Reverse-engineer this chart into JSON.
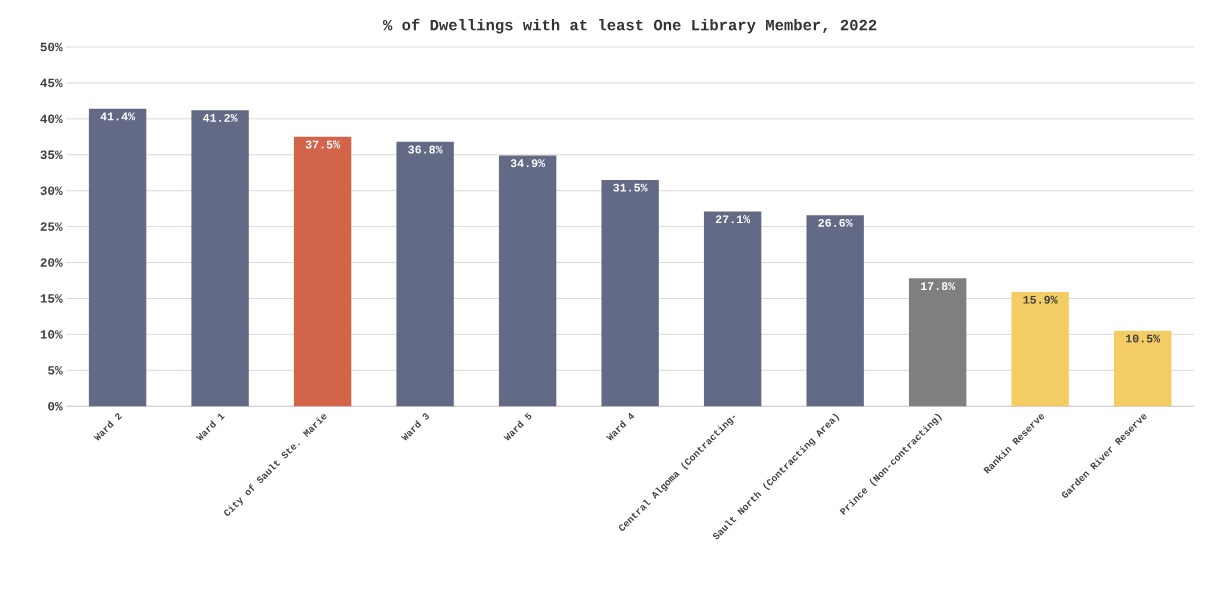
{
  "chart_data": {
    "type": "bar",
    "title": "% of Dwellings with at least One Library Member, 2022",
    "categories": [
      "Ward 2",
      "Ward 1",
      "City of Sault Ste. Marie",
      "Ward 3",
      "Ward 5",
      "Ward 4",
      "Central Algoma (Contracting-",
      "Sault North (Contracting Area)",
      "Prince (Non-contracting)",
      "Rankin Reserve",
      "Garden River Reserve"
    ],
    "values": [
      41.4,
      41.2,
      37.5,
      36.8,
      34.9,
      31.5,
      27.1,
      26.6,
      17.8,
      15.9,
      10.5
    ],
    "value_labels": [
      "41.4%",
      "41.2%",
      "37.5%",
      "36.8%",
      "34.9%",
      "31.5%",
      "27.1%",
      "26.6%",
      "17.8%",
      "15.9%",
      "10.5%"
    ],
    "colors": [
      "#636a86",
      "#636a86",
      "#d2644a",
      "#636a86",
      "#636a86",
      "#636a86",
      "#636a86",
      "#636a86",
      "#7f7f7f",
      "#f3cd63",
      "#f3cd63"
    ],
    "ylim": [
      0,
      50
    ],
    "yticks": [
      {
        "value": 0,
        "label": "0%"
      },
      {
        "value": 5,
        "label": "5%"
      },
      {
        "value": 10,
        "label": "10%"
      },
      {
        "value": 15,
        "label": "15%"
      },
      {
        "value": 20,
        "label": "20%"
      },
      {
        "value": 25,
        "label": "25%"
      },
      {
        "value": 30,
        "label": "30%"
      },
      {
        "value": 35,
        "label": "35%"
      },
      {
        "value": 40,
        "label": "40%"
      },
      {
        "value": 45,
        "label": "45%"
      },
      {
        "value": 50,
        "label": "50%"
      }
    ],
    "grid": "y"
  }
}
